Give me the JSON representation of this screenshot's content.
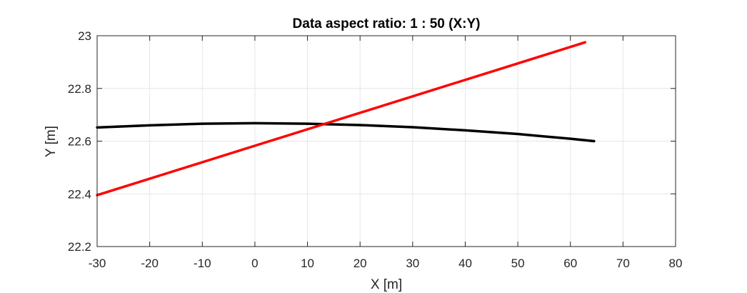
{
  "chart_data": {
    "type": "line",
    "title": "Data aspect ratio: 1 : 50 (X:Y)",
    "xlabel": "X [m]",
    "ylabel": "Y [m]",
    "xlim": [
      -30,
      80
    ],
    "ylim": [
      22.2,
      23
    ],
    "xticks": [
      "-30",
      "-20",
      "-10",
      "0",
      "10",
      "20",
      "30",
      "40",
      "50",
      "60",
      "70",
      "80"
    ],
    "yticks": [
      "22.2",
      "22.4",
      "22.6",
      "22.8",
      "23"
    ],
    "grid": true,
    "series": [
      {
        "color": "#000000",
        "x": [
          -30,
          -20,
          -10,
          0,
          10,
          20,
          30,
          40,
          50,
          60,
          64.5
        ],
        "y": [
          22.652,
          22.66,
          22.666,
          22.668,
          22.666,
          22.661,
          22.653,
          22.641,
          22.627,
          22.609,
          22.6
        ]
      },
      {
        "color": "#ff0000",
        "x": [
          -30,
          62.8
        ],
        "y": [
          22.395,
          22.975
        ]
      }
    ]
  }
}
